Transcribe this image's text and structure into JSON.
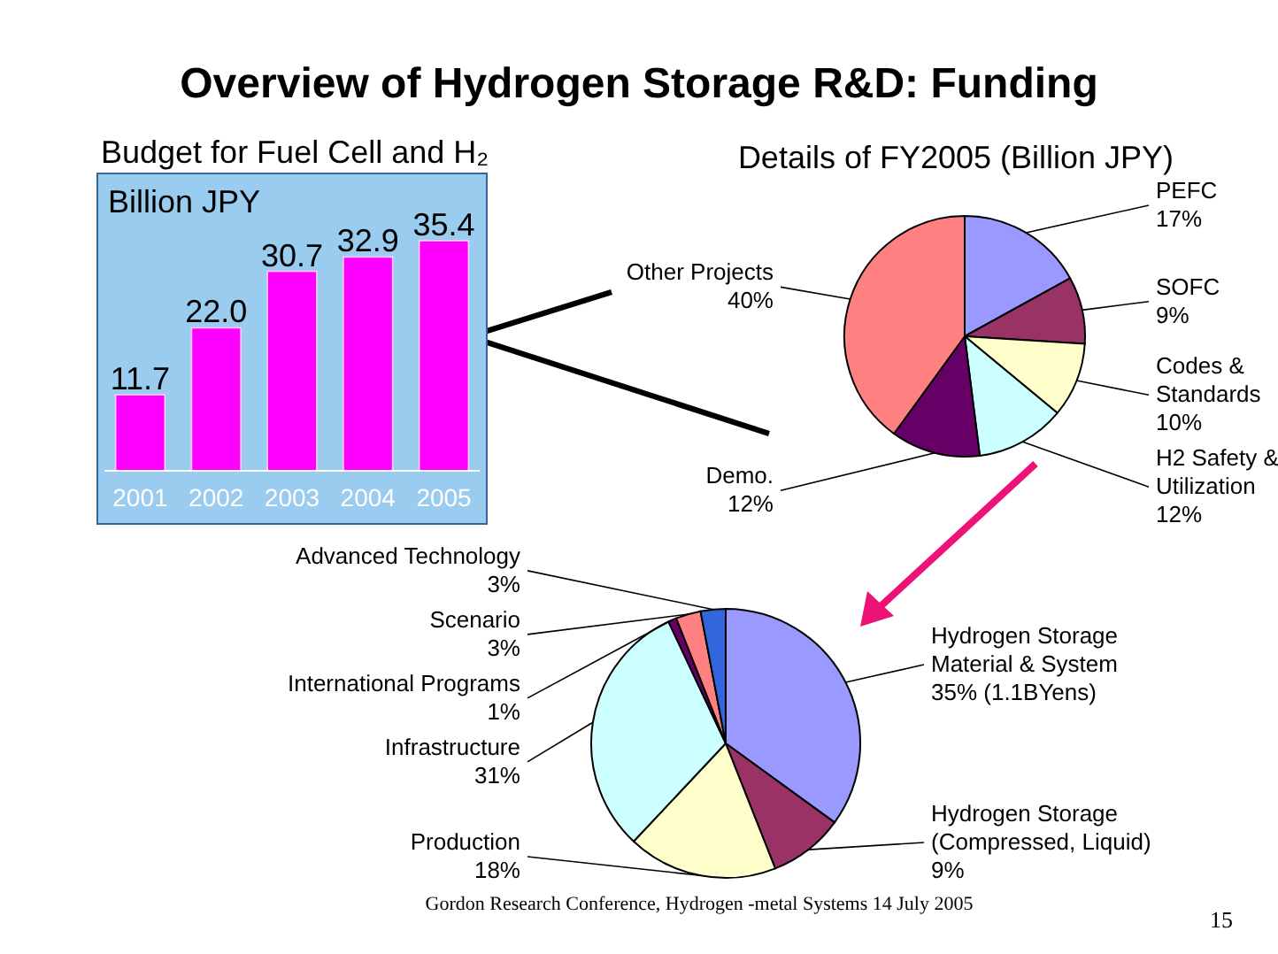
{
  "chart_data": [
    {
      "type": "bar",
      "title": "Overview of Hydrogen Storage R&D: Funding",
      "subtitle": "Budget for Fuel Cell and H₂",
      "ylabel": "Billion JPY",
      "categories": [
        "2001",
        "2002",
        "2003",
        "2004",
        "2005"
      ],
      "values": [
        11.7,
        22.0,
        30.7,
        32.9,
        35.4
      ],
      "value_labels": [
        "11.7",
        "22.0",
        "30.7",
        "32.9",
        "35.4"
      ],
      "color": "#ff00ff"
    },
    {
      "type": "pie",
      "title": "Details of FY2005 (Billion JPY)",
      "categories": [
        "PEFC",
        "SOFC",
        "Codes & Standards",
        "H2 Safety & Utilization",
        "Demo.",
        "Other Projects"
      ],
      "values": [
        17,
        9,
        10,
        12,
        12,
        40
      ],
      "value_labels": [
        "17%",
        "9%",
        "10%",
        "12%",
        "12%",
        "40%"
      ],
      "colors": [
        "#9999ff",
        "#993366",
        "#ffffcc",
        "#ccffff",
        "#660066",
        "#ff8080"
      ]
    },
    {
      "type": "pie",
      "categories": [
        "Hydrogen Storage Material & System",
        "Hydrogen Storage (Compressed, Liquid)",
        "Production",
        "Infrastructure",
        "International Programs",
        "Scenario",
        "Advanced Technology"
      ],
      "values": [
        35,
        9,
        18,
        31,
        1,
        3,
        3
      ],
      "value_labels": [
        "35% (1.1BYens)",
        "9%",
        "18%",
        "31%",
        "1%",
        "3%",
        "3%"
      ],
      "colors": [
        "#9999ff",
        "#993366",
        "#ffffcc",
        "#ccffff",
        "#660066",
        "#ff8080",
        "#3366dd"
      ],
      "annotations": [
        "Gordon Research Conference, Hydrogen -metal Systems 14 July 2005",
        "15"
      ]
    }
  ]
}
